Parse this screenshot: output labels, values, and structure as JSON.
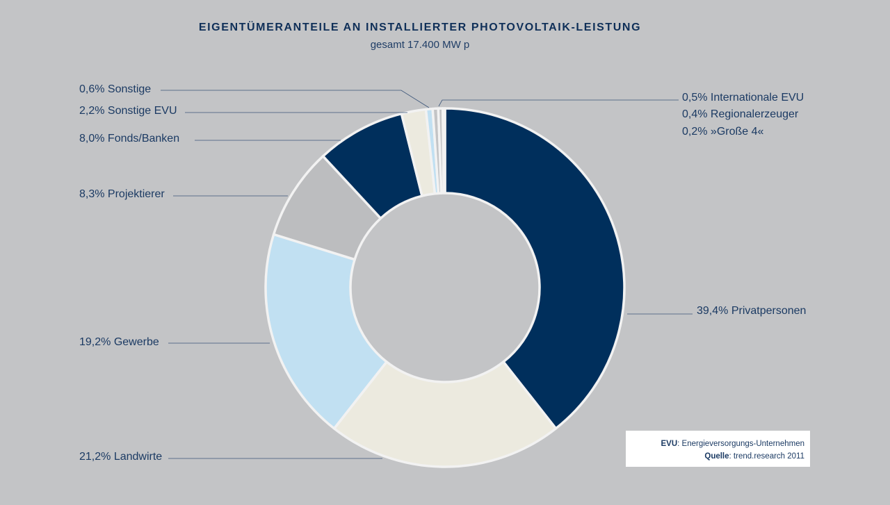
{
  "title": "EIGENTÜMERANTEILE AN INSTALLIERTER PHOTOVOLTAIK-LEISTUNG",
  "subtitle": "gesamt 17.400 MW p",
  "chart_data": {
    "type": "pie",
    "style": "donut",
    "title": "EIGENTÜMERANTEILE AN INSTALLIERTER PHOTOVOLTAIK-LEISTUNG",
    "subtitle": "gesamt 17.400 MW p",
    "unit": "%",
    "slices": [
      {
        "label": "39,4% Privatpersonen",
        "value": 39.4,
        "color": "#002f5c"
      },
      {
        "label": "21,2% Landwirte",
        "value": 21.2,
        "color": "#eceadf"
      },
      {
        "label": "19,2% Gewerbe",
        "value": 19.2,
        "color": "#c1e0f2"
      },
      {
        "label": "8,3% Projektierer",
        "value": 8.3,
        "color": "#bcbdbf"
      },
      {
        "label": "8,0% Fonds/Banken",
        "value": 8.0,
        "color": "#002f5c"
      },
      {
        "label": "2,2% Sonstige EVU",
        "value": 2.2,
        "color": "#eceadf"
      },
      {
        "label": "0,6% Sonstige",
        "value": 0.6,
        "color": "#c1e0f2"
      },
      {
        "label": "0,5% Internationale EVU",
        "value": 0.5,
        "color": "#c3c4c6"
      },
      {
        "label": "0,4% Regionalerzeuger",
        "value": 0.4,
        "color": "#c3c4c6"
      },
      {
        "label": "0,2% »Große 4«",
        "value": 0.2,
        "color": "#c3c4c6"
      }
    ]
  },
  "note": {
    "evu_key": "EVU",
    "evu_text": ": Energieversorgungs-Unternehmen",
    "source_key": "Quelle",
    "source_text": ": trend.research 2011"
  },
  "colors": {
    "background": "#c3c4c6",
    "navy": "#002f5c",
    "cream": "#eceadf",
    "light_blue": "#c1e0f2",
    "gray": "#bcbdbf",
    "text": "#1b3a63"
  }
}
